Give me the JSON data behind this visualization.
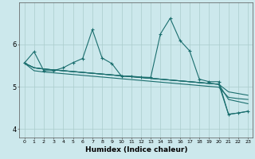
{
  "title": "",
  "xlabel": "Humidex (Indice chaleur)",
  "bg_color": "#cce8ec",
  "grid_color": "#aacccc",
  "line_color": "#1a6e6e",
  "xlim": [
    -0.5,
    23.5
  ],
  "ylim": [
    3.8,
    7.0
  ],
  "yticks": [
    4,
    5,
    6
  ],
  "xticks": [
    0,
    1,
    2,
    3,
    4,
    5,
    6,
    7,
    8,
    9,
    10,
    11,
    12,
    13,
    14,
    15,
    16,
    17,
    18,
    19,
    20,
    21,
    22,
    23
  ],
  "series0": [
    5.56,
    5.83,
    5.38,
    5.38,
    5.45,
    5.57,
    5.67,
    6.35,
    5.68,
    5.55,
    5.25,
    5.25,
    5.23,
    5.22,
    6.25,
    6.62,
    6.1,
    5.85,
    5.18,
    5.12,
    5.12,
    4.35,
    4.38,
    4.42
  ],
  "series1": [
    5.56,
    5.45,
    5.42,
    5.4,
    5.38,
    5.36,
    5.34,
    5.32,
    5.3,
    5.28,
    5.26,
    5.24,
    5.22,
    5.2,
    5.18,
    5.16,
    5.14,
    5.12,
    5.1,
    5.08,
    5.06,
    4.35,
    4.38,
    4.42
  ],
  "series2": [
    5.56,
    5.45,
    5.42,
    5.4,
    5.38,
    5.36,
    5.34,
    5.32,
    5.3,
    5.28,
    5.26,
    5.24,
    5.22,
    5.2,
    5.18,
    5.16,
    5.14,
    5.12,
    5.1,
    5.08,
    5.06,
    4.7,
    4.65,
    4.6
  ],
  "series3": [
    5.56,
    5.45,
    5.42,
    5.4,
    5.38,
    5.36,
    5.34,
    5.32,
    5.3,
    5.28,
    5.26,
    5.24,
    5.22,
    5.2,
    5.18,
    5.16,
    5.14,
    5.12,
    5.1,
    5.08,
    5.06,
    4.88,
    4.84,
    4.8
  ],
  "series4": [
    5.56,
    5.38,
    5.35,
    5.33,
    5.31,
    5.29,
    5.27,
    5.25,
    5.23,
    5.21,
    5.19,
    5.17,
    5.15,
    5.13,
    5.11,
    5.09,
    5.07,
    5.05,
    5.03,
    5.01,
    4.99,
    4.75,
    4.72,
    4.7
  ]
}
